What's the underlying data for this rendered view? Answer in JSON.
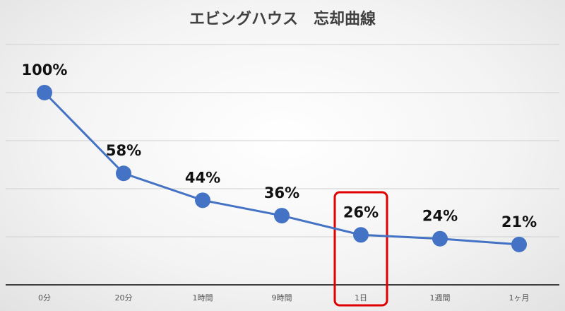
{
  "chart_data": {
    "type": "line",
    "title": "エビングハウス　忘却曲線",
    "categories": [
      "0分",
      "20分",
      "1時間",
      "9時間",
      "1日",
      "1週間",
      "1ヶ月"
    ],
    "series": [
      {
        "values": [
          100,
          58,
          44,
          36,
          26,
          24,
          21
        ]
      }
    ],
    "data_labels": [
      "100%",
      "58%",
      "44%",
      "36%",
      "26%",
      "24%",
      "21%"
    ],
    "xlabel": "",
    "ylabel": "",
    "ylim": [
      0,
      125
    ],
    "y_gridlines": [
      0,
      25,
      50,
      75,
      100,
      125
    ],
    "grid": true,
    "legend": "none",
    "highlighted_category": "1日",
    "colors": {
      "line": "#4472C4",
      "marker": "#4472C4",
      "highlight_box": "#E00000",
      "gridline": "#D0D0D0",
      "axis": "#404040"
    }
  }
}
